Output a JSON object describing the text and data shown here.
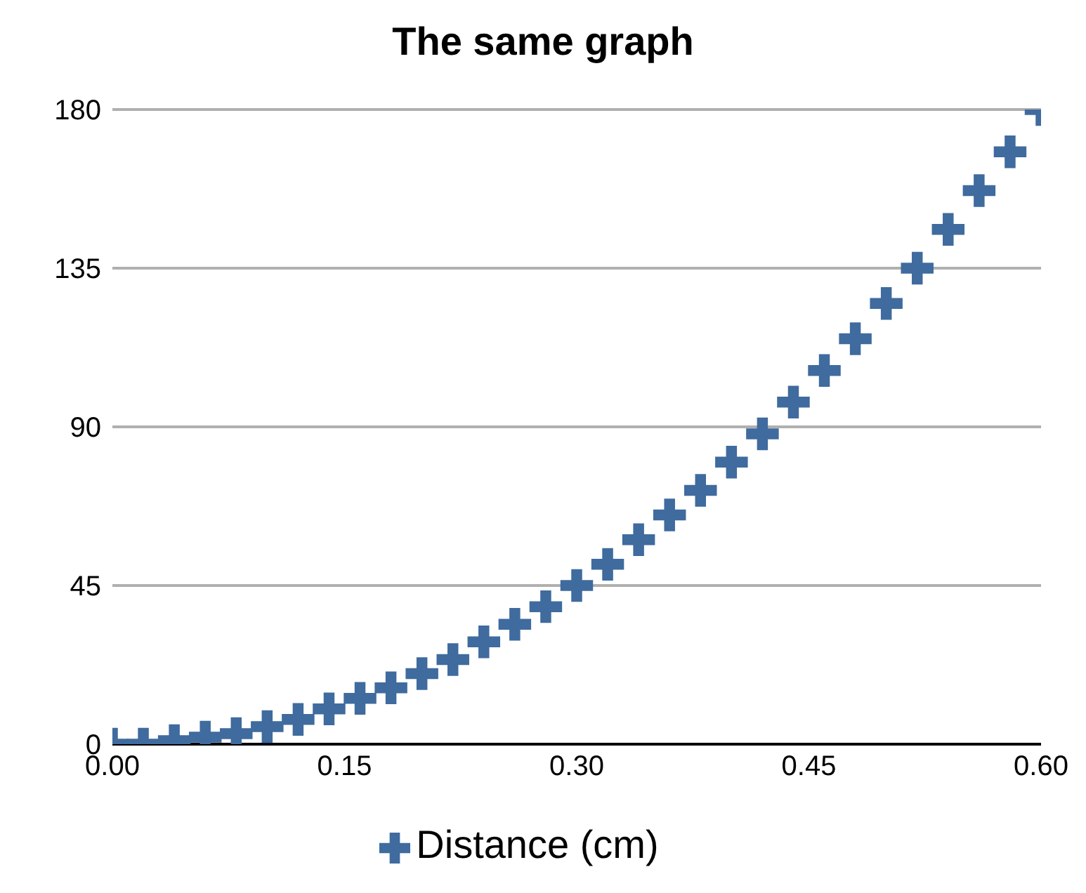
{
  "chart_data": {
    "type": "scatter",
    "title": "The same graph",
    "x": [
      0,
      0.02,
      0.04,
      0.06,
      0.08,
      0.1,
      0.12,
      0.14,
      0.16,
      0.18,
      0.2,
      0.22,
      0.24,
      0.26,
      0.28,
      0.3,
      0.32,
      0.34,
      0.36,
      0.38,
      0.4,
      0.42,
      0.44,
      0.46,
      0.48,
      0.5,
      0.52,
      0.54,
      0.56,
      0.58,
      0.6
    ],
    "series": [
      {
        "name": "Distance (cm)",
        "color": "#3f6b9e",
        "values": [
          0,
          0,
          1,
          2,
          3,
          5,
          7,
          10,
          13,
          16,
          20,
          24,
          29,
          34,
          39,
          45,
          51,
          58,
          65,
          72,
          80,
          88,
          97,
          106,
          115,
          125,
          135,
          146,
          157,
          168,
          180
        ]
      }
    ],
    "xlim": [
      0,
      0.6
    ],
    "xticks": [
      {
        "value": 0,
        "label": "0.00"
      },
      {
        "value": 0.15,
        "label": "0.15"
      },
      {
        "value": 0.3,
        "label": "0.30"
      },
      {
        "value": 0.45,
        "label": "0.45"
      },
      {
        "value": 0.6,
        "label": "0.60"
      }
    ],
    "ylim": [
      0,
      180
    ],
    "yticks": [
      0,
      45,
      90,
      135,
      180
    ],
    "grid": "y",
    "legend": "bottom",
    "marker": "cross"
  }
}
